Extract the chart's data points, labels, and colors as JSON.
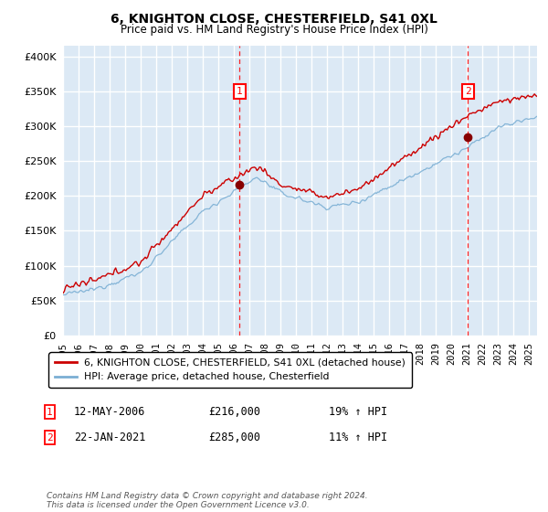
{
  "title": "6, KNIGHTON CLOSE, CHESTERFIELD, S41 0XL",
  "subtitle": "Price paid vs. HM Land Registry's House Price Index (HPI)",
  "ylabel_ticks": [
    "£0",
    "£50K",
    "£100K",
    "£150K",
    "£200K",
    "£250K",
    "£300K",
    "£350K",
    "£400K"
  ],
  "ytick_values": [
    0,
    50000,
    100000,
    150000,
    200000,
    250000,
    300000,
    350000,
    400000
  ],
  "ylim": [
    0,
    415000
  ],
  "xlim_start": 1995.0,
  "xlim_end": 2025.5,
  "bg_color": "#dce9f5",
  "grid_color": "#ffffff",
  "red_line_color": "#cc0000",
  "blue_line_color": "#7bafd4",
  "marker1_x": 2006.37,
  "marker1_y": 216000,
  "marker2_x": 2021.06,
  "marker2_y": 285000,
  "legend_line1": "6, KNIGHTON CLOSE, CHESTERFIELD, S41 0XL (detached house)",
  "legend_line2": "HPI: Average price, detached house, Chesterfield",
  "marker1_date": "12-MAY-2006",
  "marker1_price": "£216,000",
  "marker1_hpi": "19% ↑ HPI",
  "marker2_date": "22-JAN-2021",
  "marker2_price": "£285,000",
  "marker2_hpi": "11% ↑ HPI",
  "footer": "Contains HM Land Registry data © Crown copyright and database right 2024.\nThis data is licensed under the Open Government Licence v3.0.",
  "xtick_years": [
    1995,
    1996,
    1997,
    1998,
    1999,
    2000,
    2001,
    2002,
    2003,
    2004,
    2005,
    2006,
    2007,
    2008,
    2009,
    2010,
    2011,
    2012,
    2013,
    2014,
    2015,
    2016,
    2017,
    2018,
    2019,
    2020,
    2021,
    2022,
    2023,
    2024,
    2025
  ]
}
